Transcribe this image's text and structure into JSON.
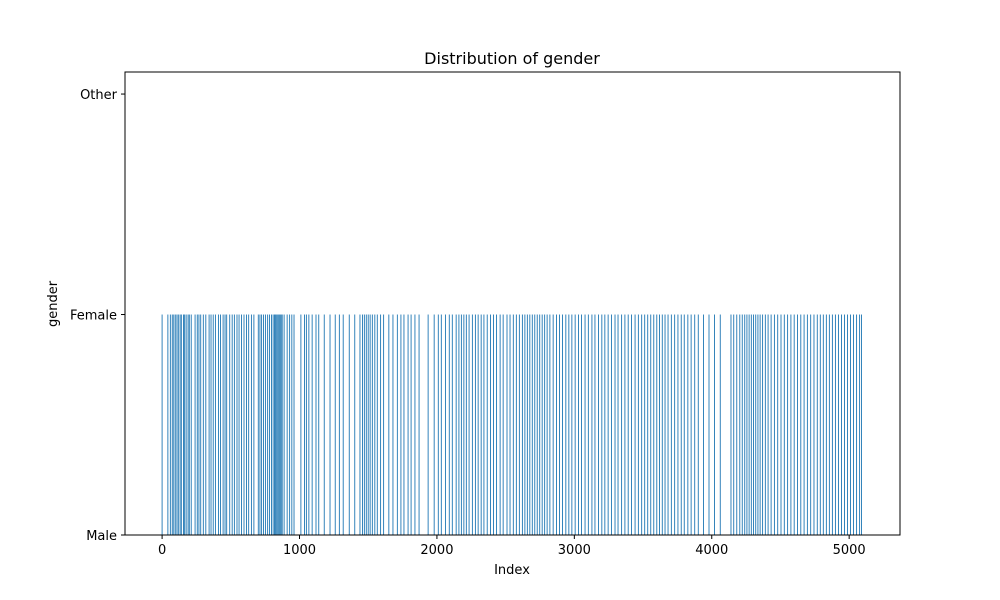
{
  "chart_data": {
    "type": "bar",
    "title": "Distribution of gender",
    "xlabel": "Index",
    "ylabel": "gender",
    "categories_y": [
      "Male",
      "Female",
      "Other"
    ],
    "x_ticks": [
      0,
      1000,
      2000,
      3000,
      4000,
      5000
    ],
    "y_ticks": [
      "Male",
      "Female",
      "Other"
    ],
    "xlim": [
      -270,
      5370
    ],
    "ylim": [
      0,
      2.1
    ],
    "grid": false,
    "bar_color": "#1f77b4",
    "series": [
      {
        "values_note_excluded": true,
        "female_indices": [
          0,
          42,
          60,
          74,
          85,
          96,
          108,
          118,
          131,
          140,
          156,
          164,
          175,
          189,
          198,
          212,
          240,
          256,
          268,
          281,
          300,
          318,
          342,
          356,
          372,
          388,
          410,
          425,
          444,
          458,
          470,
          492,
          510,
          526,
          545,
          560,
          578,
          596,
          614,
          630,
          650,
          668,
          700,
          712,
          724,
          738,
          752,
          768,
          782,
          796,
          808,
          818,
          826,
          834,
          842,
          850,
          858,
          866,
          874,
          888,
          910,
          928,
          944,
          960,
          1010,
          1036,
          1050,
          1068,
          1092,
          1120,
          1140,
          1180,
          1222,
          1260,
          1290,
          1318,
          1362,
          1402,
          1440,
          1458,
          1472,
          1486,
          1500,
          1514,
          1530,
          1548,
          1566,
          1590,
          1612,
          1650,
          1680,
          1712,
          1738,
          1760,
          1790,
          1812,
          1840,
          1870,
          1936,
          1980,
          2010,
          2032,
          2062,
          2090,
          2112,
          2140,
          2160,
          2178,
          2196,
          2214,
          2234,
          2258,
          2280,
          2300,
          2322,
          2342,
          2366,
          2390,
          2412,
          2434,
          2460,
          2482,
          2510,
          2532,
          2556,
          2578,
          2600,
          2622,
          2640,
          2658,
          2676,
          2694,
          2712,
          2730,
          2748,
          2766,
          2784,
          2802,
          2822,
          2846,
          2870,
          2892,
          2914,
          2938,
          2960,
          2982,
          3006,
          3030,
          3052,
          3078,
          3102,
          3128,
          3150,
          3176,
          3200,
          3222,
          3246,
          3270,
          3296,
          3318,
          3344,
          3368,
          3392,
          3416,
          3442,
          3466,
          3490,
          3512,
          3534,
          3556,
          3578,
          3600,
          3620,
          3640,
          3660,
          3682,
          3706,
          3730,
          3754,
          3778,
          3800,
          3826,
          3850,
          3876,
          3902,
          3940,
          3980,
          4020,
          4062,
          4140,
          4160,
          4182,
          4204,
          4222,
          4240,
          4256,
          4272,
          4288,
          4304,
          4320,
          4336,
          4352,
          4370,
          4390,
          4410,
          4432,
          4456,
          4480,
          4504,
          4528,
          4552,
          4576,
          4600,
          4624,
          4648,
          4672,
          4696,
          4720,
          4744,
          4768,
          4790,
          4812,
          4834,
          4856,
          4878,
          4900,
          4922,
          4944,
          4966,
          4988,
          5010,
          5032,
          5054,
          5076,
          5090
        ],
        "female_level": 1
      }
    ]
  }
}
